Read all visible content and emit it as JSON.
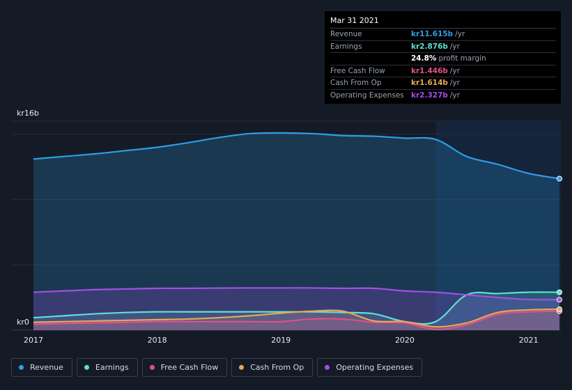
{
  "tooltip": {
    "date": "Mar 31 2021",
    "rows": [
      {
        "label": "Revenue",
        "value": "kr11.615b",
        "unit": "/yr",
        "color": "#2e9ee8"
      },
      {
        "label": "Earnings",
        "value": "kr2.876b",
        "unit": "/yr",
        "color": "#5ee0d0"
      },
      {
        "label": "",
        "value": "24.8%",
        "unit": "profit margin",
        "color": "#ffffff"
      },
      {
        "label": "Free Cash Flow",
        "value": "kr1.446b",
        "unit": "/yr",
        "color": "#e0508a"
      },
      {
        "label": "Cash From Op",
        "value": "kr1.614b",
        "unit": "/yr",
        "color": "#e6a858"
      },
      {
        "label": "Operating Expenses",
        "value": "kr2.327b",
        "unit": "/yr",
        "color": "#a54ee8"
      }
    ]
  },
  "legend": [
    {
      "label": "Revenue",
      "color": "#2e9ee8"
    },
    {
      "label": "Earnings",
      "color": "#5ee0d0"
    },
    {
      "label": "Free Cash Flow",
      "color": "#e0508a"
    },
    {
      "label": "Cash From Op",
      "color": "#e6a858"
    },
    {
      "label": "Operating Expenses",
      "color": "#a54ee8"
    }
  ],
  "chart_data": {
    "type": "area",
    "y_top_label": "kr16b",
    "y_bottom_label": "kr0",
    "ylim": [
      0,
      16
    ],
    "xlim": [
      2017.0,
      2021.25
    ],
    "x_ticks": [
      2017,
      2018,
      2019,
      2020,
      2021
    ],
    "x_tick_labels": [
      "2017",
      "2018",
      "2019",
      "2020",
      "2021"
    ],
    "highlight_from": 2020.25,
    "series": [
      {
        "name": "Revenue",
        "color": "#2e9ee8",
        "points": [
          [
            2017.0,
            13.1
          ],
          [
            2017.25,
            13.3
          ],
          [
            2017.5,
            13.5
          ],
          [
            2017.75,
            13.75
          ],
          [
            2018.0,
            14.0
          ],
          [
            2018.25,
            14.35
          ],
          [
            2018.5,
            14.75
          ],
          [
            2018.75,
            15.05
          ],
          [
            2019.0,
            15.1
          ],
          [
            2019.25,
            15.05
          ],
          [
            2019.5,
            14.9
          ],
          [
            2019.75,
            14.85
          ],
          [
            2020.0,
            14.7
          ],
          [
            2020.25,
            14.6
          ],
          [
            2020.5,
            13.3
          ],
          [
            2020.75,
            12.7
          ],
          [
            2021.0,
            12.0
          ],
          [
            2021.25,
            11.6
          ]
        ]
      },
      {
        "name": "Earnings",
        "color": "#5ee0d0",
        "points": [
          [
            2017.0,
            0.95
          ],
          [
            2017.25,
            1.1
          ],
          [
            2017.5,
            1.25
          ],
          [
            2017.75,
            1.35
          ],
          [
            2018.0,
            1.4
          ],
          [
            2018.25,
            1.4
          ],
          [
            2018.5,
            1.4
          ],
          [
            2018.75,
            1.4
          ],
          [
            2019.0,
            1.4
          ],
          [
            2019.25,
            1.4
          ],
          [
            2019.5,
            1.35
          ],
          [
            2019.75,
            1.25
          ],
          [
            2020.0,
            0.65
          ],
          [
            2020.25,
            0.65
          ],
          [
            2020.5,
            2.7
          ],
          [
            2020.75,
            2.8
          ],
          [
            2021.0,
            2.9
          ],
          [
            2021.25,
            2.9
          ]
        ]
      },
      {
        "name": "Free Cash Flow",
        "color": "#e0508a",
        "points": [
          [
            2017.0,
            0.45
          ],
          [
            2017.25,
            0.5
          ],
          [
            2017.5,
            0.55
          ],
          [
            2017.75,
            0.6
          ],
          [
            2018.0,
            0.65
          ],
          [
            2018.25,
            0.65
          ],
          [
            2018.5,
            0.65
          ],
          [
            2018.75,
            0.65
          ],
          [
            2019.0,
            0.65
          ],
          [
            2019.25,
            0.85
          ],
          [
            2019.5,
            0.85
          ],
          [
            2019.75,
            0.6
          ],
          [
            2020.0,
            0.55
          ],
          [
            2020.25,
            0.05
          ],
          [
            2020.5,
            0.4
          ],
          [
            2020.75,
            1.2
          ],
          [
            2021.0,
            1.4
          ],
          [
            2021.25,
            1.45
          ]
        ]
      },
      {
        "name": "Cash From Op",
        "color": "#e6a858",
        "points": [
          [
            2017.0,
            0.6
          ],
          [
            2017.25,
            0.65
          ],
          [
            2017.5,
            0.7
          ],
          [
            2017.75,
            0.75
          ],
          [
            2018.0,
            0.8
          ],
          [
            2018.25,
            0.85
          ],
          [
            2018.5,
            0.95
          ],
          [
            2018.75,
            1.1
          ],
          [
            2019.0,
            1.3
          ],
          [
            2019.25,
            1.45
          ],
          [
            2019.5,
            1.45
          ],
          [
            2019.75,
            0.7
          ],
          [
            2020.0,
            0.65
          ],
          [
            2020.25,
            0.25
          ],
          [
            2020.5,
            0.55
          ],
          [
            2020.75,
            1.35
          ],
          [
            2021.0,
            1.55
          ],
          [
            2021.25,
            1.6
          ]
        ]
      },
      {
        "name": "Operating Expenses",
        "color": "#a54ee8",
        "points": [
          [
            2017.0,
            2.9
          ],
          [
            2017.25,
            3.0
          ],
          [
            2017.5,
            3.1
          ],
          [
            2017.75,
            3.15
          ],
          [
            2018.0,
            3.2
          ],
          [
            2018.25,
            3.2
          ],
          [
            2018.5,
            3.22
          ],
          [
            2018.75,
            3.23
          ],
          [
            2019.0,
            3.23
          ],
          [
            2019.25,
            3.23
          ],
          [
            2019.5,
            3.2
          ],
          [
            2019.75,
            3.2
          ],
          [
            2020.0,
            3.0
          ],
          [
            2020.25,
            2.9
          ],
          [
            2020.5,
            2.7
          ],
          [
            2020.75,
            2.5
          ],
          [
            2021.0,
            2.35
          ],
          [
            2021.25,
            2.33
          ]
        ]
      }
    ]
  }
}
